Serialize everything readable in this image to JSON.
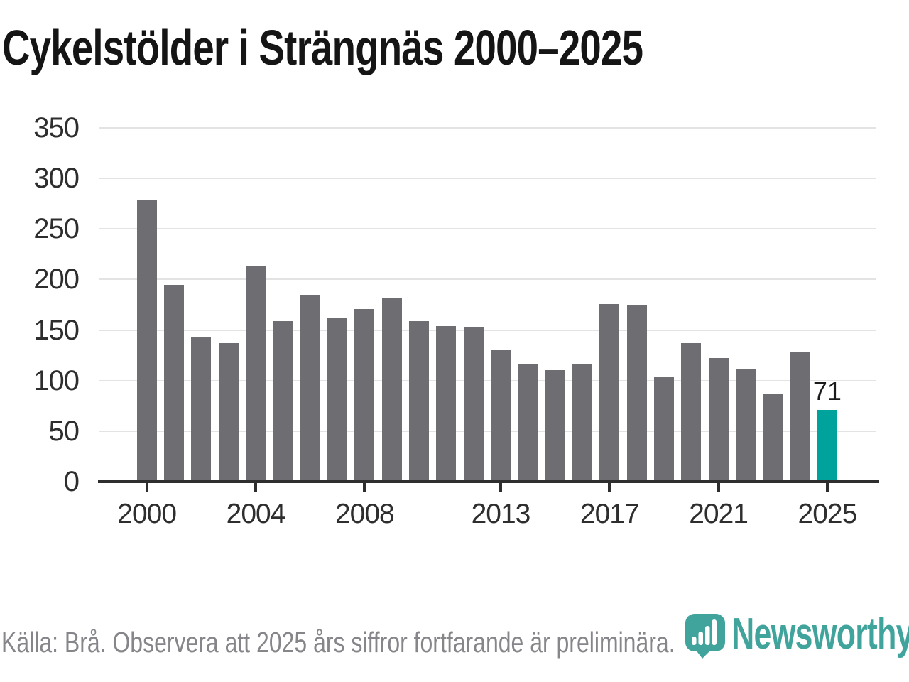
{
  "title": "Cykelstölder i Strängnäs 2000–2025",
  "chart_data": {
    "type": "bar",
    "categories": [
      2000,
      2001,
      2002,
      2003,
      2004,
      2005,
      2006,
      2007,
      2008,
      2009,
      2010,
      2011,
      2012,
      2013,
      2014,
      2015,
      2016,
      2017,
      2018,
      2019,
      2020,
      2021,
      2022,
      2023,
      2024,
      2025
    ],
    "values": [
      278,
      195,
      143,
      137,
      214,
      159,
      185,
      162,
      171,
      181,
      159,
      154,
      153,
      130,
      117,
      110,
      116,
      176,
      174,
      103,
      137,
      122,
      111,
      87,
      128,
      71
    ],
    "title": "Cykelstölder i Strängnäs 2000–2025",
    "xlabel": "",
    "ylabel": "",
    "ylim": [
      0,
      350
    ],
    "y_ticks": [
      0,
      50,
      100,
      150,
      200,
      250,
      300,
      350
    ],
    "x_tick_labels": [
      "2000",
      "2004",
      "2008",
      "2013",
      "2017",
      "2021",
      "2025"
    ],
    "grid": "horizontal",
    "legend": "none",
    "highlight_year": 2025,
    "value_label": {
      "year": 2025,
      "text": "71"
    },
    "bar_color": "#6d6d72",
    "highlight_color": "#00a39b"
  },
  "footer": {
    "source_note": "Källa: Brå. Observera att 2025 års siffror fortfarande är preliminära."
  },
  "branding": {
    "logo_text": "Newsworthy",
    "logo_color": "#41a49c",
    "logo_mark": "bar-chart-pin-icon"
  }
}
